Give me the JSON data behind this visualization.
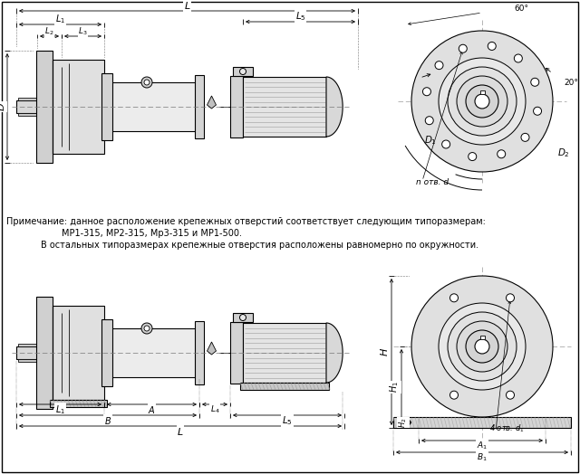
{
  "bg_color": "#ffffff",
  "lc": "#000000",
  "note_line1": "Примечание: данное расположение крепежных отверстий соответствует следующим типоразмерам:",
  "note_line2": "МР1-315, МР2-315, Мр3-315 и МР1-500.",
  "note_line3": "В остальных типоразмерах крепежные отверстия расположены равномерно по окружности."
}
